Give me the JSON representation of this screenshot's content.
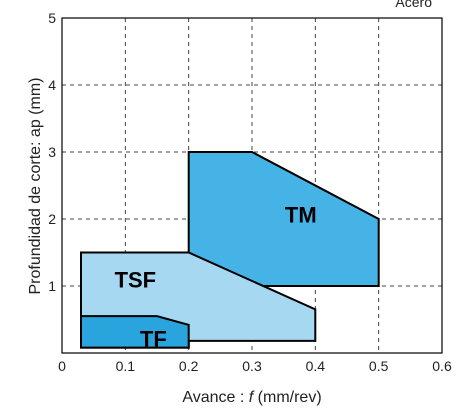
{
  "chart_data": {
    "type": "area",
    "title": "",
    "corner_label": "Acero",
    "xlabel_prefix": "Avance : ",
    "xlabel_var": "f",
    "xlabel_suffix": " (mm/rev)",
    "ylabel": "Profundidad de corte: ap (mm)",
    "xlim": [
      0,
      0.6
    ],
    "ylim": [
      0,
      5
    ],
    "xticks": [
      0,
      0.1,
      0.2,
      0.3,
      0.4,
      0.5,
      0.6
    ],
    "xtick_labels": [
      "0",
      "0.1",
      "0.2",
      "0.3",
      "0.4",
      "0.5",
      "0.6"
    ],
    "yticks": [
      1,
      2,
      3,
      4,
      5
    ],
    "ytick_labels": [
      "1",
      "2",
      "3",
      "4",
      "5"
    ],
    "grid": true,
    "regions": [
      {
        "name": "TM",
        "color": "#45B3E6",
        "polygon": [
          [
            0.2,
            1.0
          ],
          [
            0.2,
            3.0
          ],
          [
            0.3,
            3.0
          ],
          [
            0.5,
            2.0
          ],
          [
            0.5,
            1.0
          ]
        ],
        "label_at": [
          0.352,
          1.95
        ]
      },
      {
        "name": "TSF",
        "color": "#A6D8F2",
        "polygon": [
          [
            0.03,
            0.08
          ],
          [
            0.03,
            1.5
          ],
          [
            0.2,
            1.5
          ],
          [
            0.4,
            0.65
          ],
          [
            0.4,
            0.18
          ],
          [
            0.2,
            0.18
          ],
          [
            0.2,
            0.08
          ]
        ],
        "label_at": [
          0.083,
          0.98
        ]
      },
      {
        "name": "TF",
        "color": "#2AA4DC",
        "polygon": [
          [
            0.03,
            0.08
          ],
          [
            0.03,
            0.55
          ],
          [
            0.15,
            0.55
          ],
          [
            0.2,
            0.42
          ],
          [
            0.2,
            0.08
          ]
        ],
        "label_at": [
          0.123,
          0.1
        ]
      }
    ]
  }
}
